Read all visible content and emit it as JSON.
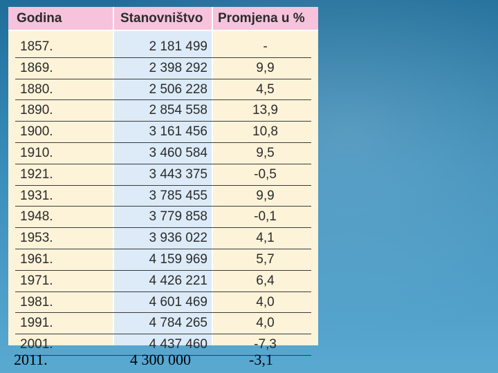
{
  "table": {
    "headers": {
      "year": "Godina",
      "population": "Stanovništvo",
      "change": "Promjena u %"
    },
    "rows": [
      {
        "year": "1857.",
        "population": "2 181 499",
        "change": "-"
      },
      {
        "year": "1869.",
        "population": "2 398 292",
        "change": "9,9"
      },
      {
        "year": "1880.",
        "population": "2 506 228",
        "change": "4,5"
      },
      {
        "year": "1890.",
        "population": "2 854 558",
        "change": "13,9"
      },
      {
        "year": "1900.",
        "population": "3 161 456",
        "change": "10,8"
      },
      {
        "year": "1910.",
        "population": "3 460 584",
        "change": "9,5"
      },
      {
        "year": "1921.",
        "population": "3 443 375",
        "change": "-0,5"
      },
      {
        "year": "1931.",
        "population": "3 785 455",
        "change": "9,9"
      },
      {
        "year": "1948.",
        "population": "3 779 858",
        "change": "-0,1"
      },
      {
        "year": "1953.",
        "population": "3 936 022",
        "change": "4,1"
      },
      {
        "year": "1961.",
        "population": "4 159 969",
        "change": "5,7"
      },
      {
        "year": "1971.",
        "population": "4 426 221",
        "change": "6,4"
      },
      {
        "year": "1981.",
        "population": "4 601 469",
        "change": "4,0"
      },
      {
        "year": "1991.",
        "population": "4 784 265",
        "change": "4,0"
      },
      {
        "year": "2001.",
        "population": "4 437 460",
        "change": "-7,3"
      }
    ]
  },
  "added_row": {
    "year": "2011.",
    "population": "4 300 000",
    "change": "-3,1"
  }
}
